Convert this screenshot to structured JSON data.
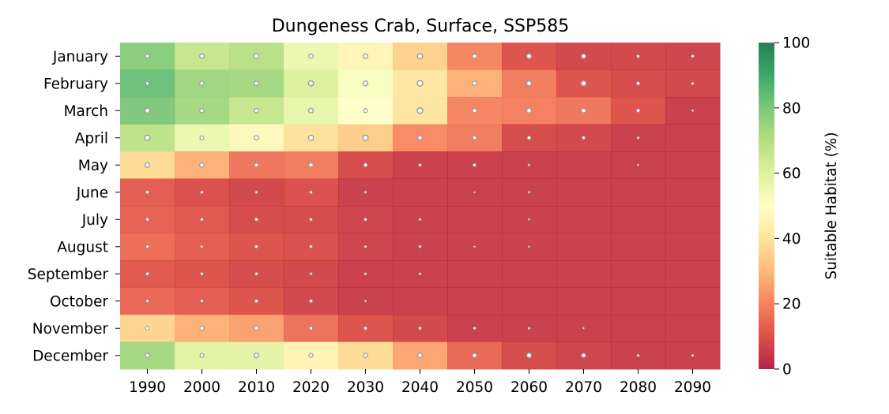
{
  "chart_data": {
    "type": "heatmap",
    "title": "Dungeness Crab, Surface, SSP585",
    "x_categories": [
      "1990",
      "2000",
      "2010",
      "2020",
      "2030",
      "2040",
      "2050",
      "2060",
      "2070",
      "2080",
      "2090"
    ],
    "y_categories": [
      "January",
      "February",
      "March",
      "April",
      "May",
      "June",
      "July",
      "August",
      "September",
      "October",
      "November",
      "December"
    ],
    "values": [
      [
        78,
        66,
        69,
        56,
        46,
        35,
        20,
        10,
        7,
        7,
        6
      ],
      [
        83,
        74,
        73,
        61,
        52,
        41,
        28,
        18,
        10,
        8,
        7
      ],
      [
        80,
        73,
        66,
        57,
        50,
        40,
        20,
        19,
        17,
        10,
        5
      ],
      [
        68,
        56,
        47,
        39,
        34,
        21,
        18,
        8,
        7,
        5,
        5
      ],
      [
        38,
        28,
        17,
        18,
        8,
        5,
        5,
        5,
        5,
        5,
        5
      ],
      [
        12,
        9,
        7,
        9,
        5,
        5,
        5,
        5,
        5,
        5,
        5
      ],
      [
        13,
        11,
        8,
        8,
        6,
        5,
        5,
        5,
        5,
        5,
        5
      ],
      [
        15,
        12,
        10,
        9,
        6,
        5,
        5,
        5,
        5,
        5,
        5
      ],
      [
        11,
        10,
        8,
        7,
        5,
        5,
        5,
        5,
        5,
        5,
        5
      ],
      [
        14,
        12,
        10,
        7,
        5,
        5,
        5,
        5,
        5,
        5,
        5
      ],
      [
        36,
        28,
        25,
        16,
        10,
        7,
        5,
        5,
        5,
        5,
        5
      ],
      [
        73,
        59,
        58,
        45,
        38,
        26,
        14,
        8,
        6,
        5,
        5
      ]
    ],
    "marker_sizes": [
      [
        0.45,
        0.65,
        0.75,
        0.65,
        0.7,
        0.8,
        0.65,
        0.7,
        0.65,
        0.35,
        0.35
      ],
      [
        0.45,
        0.6,
        0.65,
        0.75,
        0.7,
        0.85,
        0.65,
        0.7,
        0.75,
        0.45,
        0.3
      ],
      [
        0.75,
        0.6,
        0.65,
        0.7,
        0.6,
        0.85,
        0.6,
        0.7,
        0.65,
        0.45,
        0.2
      ],
      [
        0.8,
        0.55,
        0.65,
        0.75,
        0.8,
        0.6,
        0.5,
        0.5,
        0.4,
        0.25,
        0.0
      ],
      [
        0.7,
        0.65,
        0.5,
        0.6,
        0.5,
        0.35,
        0.4,
        0.25,
        0.0,
        0.15,
        0.0
      ],
      [
        0.4,
        0.35,
        0.3,
        0.35,
        0.25,
        0.0,
        0.1,
        0.2,
        0.0,
        0.0,
        0.0
      ],
      [
        0.4,
        0.35,
        0.4,
        0.35,
        0.35,
        0.25,
        0.0,
        0.15,
        0.0,
        0.0,
        0.0
      ],
      [
        0.35,
        0.3,
        0.4,
        0.35,
        0.25,
        0.3,
        0.15,
        0.15,
        0.0,
        0.0,
        0.0
      ],
      [
        0.4,
        0.35,
        0.35,
        0.3,
        0.25,
        0.25,
        0.0,
        0.0,
        0.0,
        0.0,
        0.0
      ],
      [
        0.35,
        0.35,
        0.4,
        0.4,
        0.2,
        0.0,
        0.0,
        0.0,
        0.0,
        0.0,
        0.0
      ],
      [
        0.5,
        0.55,
        0.55,
        0.45,
        0.4,
        0.35,
        0.3,
        0.25,
        0.15,
        0.0,
        0.0
      ],
      [
        0.65,
        0.55,
        0.7,
        0.6,
        0.65,
        0.7,
        0.6,
        0.7,
        0.6,
        0.3,
        0.25
      ]
    ],
    "colorbar": {
      "label": "Suitable Habitat (%)",
      "min": 0,
      "max": 100,
      "ticks": [
        "0",
        "20",
        "40",
        "60",
        "80",
        "100"
      ],
      "colormap": "RdYlGn"
    },
    "xlabel": "",
    "ylabel": "",
    "grid": false
  }
}
